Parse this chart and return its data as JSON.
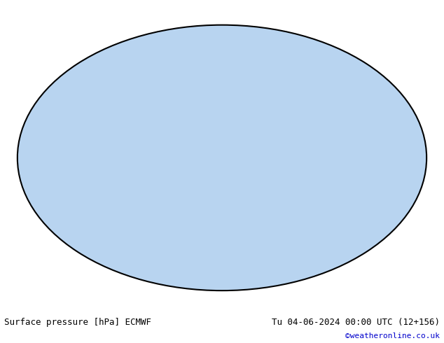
{
  "title_left": "Surface pressure [hPa] ECMWF",
  "title_right": "Tu 04-06-2024 00:00 UTC (12+156)",
  "copyright": "©weatheronline.co.uk",
  "background_color": "#ffffff",
  "map_bg_ocean": "#dce9f5",
  "map_bg_land": "#c8e6a0",
  "map_bg_gray": "#cccccc",
  "contour_color_low": "#0000ff",
  "contour_color_high": "#ff0000",
  "contour_color_1013": "#000000",
  "label_fontsize": 7,
  "footer_fontsize": 9,
  "footer_color_left": "#000000",
  "footer_color_right": "#000000",
  "copyright_color": "#0000cc",
  "pressure_base": 1013,
  "pressure_interval": 4,
  "pressure_min": 960,
  "pressure_max": 1040
}
